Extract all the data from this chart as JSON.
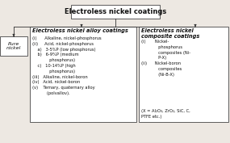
{
  "title": "Electroless nickel coatings",
  "box1_text": "Pure\nnickel",
  "box2_title": "Electroless nickel alloy coatings",
  "box2_body": "(i)      Alkaline, nickel-phosphorus\n(ii)     Acid, nickel-phosphorus\n    a)   3-5%P (low phosphorus)\n    b)   6-9%P (medium\n             phosphorus)\n    c)   10-14%P (high\n             phosphorus)\n(iii)   Alkaline, nickel-boron\n(iv)   Acid, nickel-boron\n(v)    Ternary, quaternary alloy\n           (polvallov).",
  "box3_title": "Electroless nickel\ncomposite coatings",
  "box3_body": "(i)       Nickel-\n             phosphorus\n             composites (Ni-\n             P-X)\n(ii)      Nickel-boron\n             composites\n             (Ni-B-X)",
  "box3_footer": "(X = Al₂O₃, ZrO₂, SiC, C,\nPTFE etc.)",
  "bg_color": "#ede8e2",
  "box_edge_color": "#444444",
  "text_color": "#111111",
  "box_bg": "#ffffff",
  "line_color": "#333333"
}
